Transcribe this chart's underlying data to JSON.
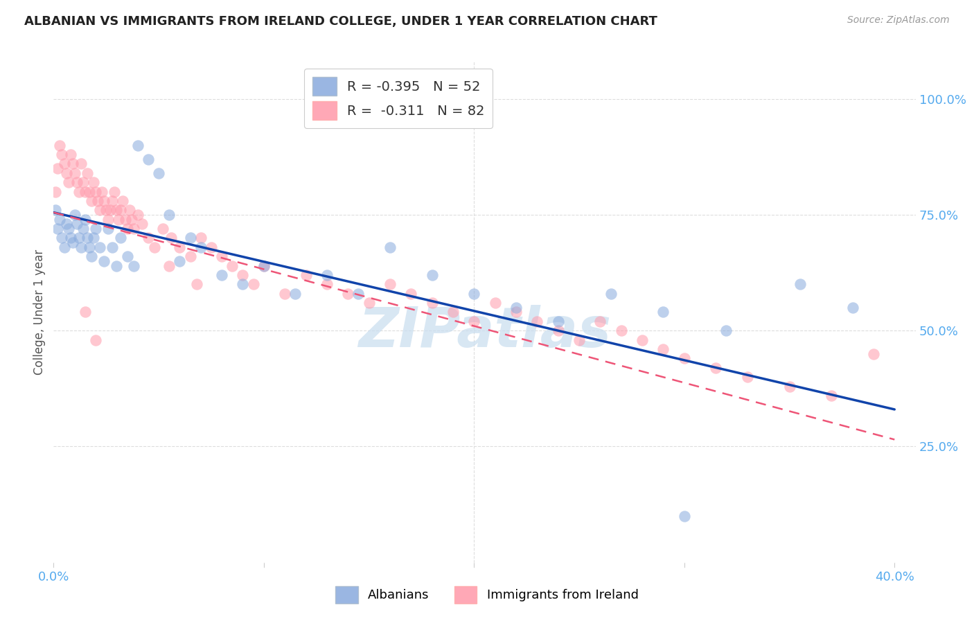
{
  "title": "ALBANIAN VS IMMIGRANTS FROM IRELAND COLLEGE, UNDER 1 YEAR CORRELATION CHART",
  "source": "Source: ZipAtlas.com",
  "ylabel": "College, Under 1 year",
  "xlim": [
    0.0,
    0.41
  ],
  "ylim": [
    0.0,
    1.08
  ],
  "blue_scatter_color": "#88AADD",
  "pink_scatter_color": "#FF99AA",
  "blue_line_color": "#1144AA",
  "pink_line_color": "#EE5577",
  "label_blue": "Albanians",
  "label_pink": "Immigrants from Ireland",
  "watermark": "ZIPatlas",
  "grid_color": "#DDDDDD",
  "title_color": "#222222",
  "axis_tick_color": "#55AAEE",
  "blue_line_x0": 0.0,
  "blue_line_y0": 0.755,
  "blue_line_x1": 0.4,
  "blue_line_y1": 0.33,
  "pink_line_x0": 0.0,
  "pink_line_y0": 0.755,
  "pink_line_x1": 0.4,
  "pink_line_y1": 0.265,
  "blue_x": [
    0.001,
    0.002,
    0.003,
    0.004,
    0.005,
    0.006,
    0.007,
    0.008,
    0.009,
    0.01,
    0.011,
    0.012,
    0.013,
    0.014,
    0.015,
    0.016,
    0.017,
    0.018,
    0.019,
    0.02,
    0.022,
    0.024,
    0.026,
    0.028,
    0.03,
    0.032,
    0.035,
    0.038,
    0.04,
    0.045,
    0.05,
    0.055,
    0.06,
    0.065,
    0.07,
    0.08,
    0.09,
    0.1,
    0.115,
    0.13,
    0.145,
    0.16,
    0.18,
    0.2,
    0.22,
    0.24,
    0.265,
    0.29,
    0.32,
    0.355,
    0.38,
    0.3
  ],
  "blue_y": [
    0.76,
    0.72,
    0.74,
    0.7,
    0.68,
    0.73,
    0.72,
    0.7,
    0.69,
    0.75,
    0.73,
    0.7,
    0.68,
    0.72,
    0.74,
    0.7,
    0.68,
    0.66,
    0.7,
    0.72,
    0.68,
    0.65,
    0.72,
    0.68,
    0.64,
    0.7,
    0.66,
    0.64,
    0.9,
    0.87,
    0.84,
    0.75,
    0.65,
    0.7,
    0.68,
    0.62,
    0.6,
    0.64,
    0.58,
    0.62,
    0.58,
    0.68,
    0.62,
    0.58,
    0.55,
    0.52,
    0.58,
    0.54,
    0.5,
    0.6,
    0.55,
    0.1
  ],
  "pink_x": [
    0.001,
    0.002,
    0.003,
    0.004,
    0.005,
    0.006,
    0.007,
    0.008,
    0.009,
    0.01,
    0.011,
    0.012,
    0.013,
    0.014,
    0.015,
    0.016,
    0.017,
    0.018,
    0.019,
    0.02,
    0.021,
    0.022,
    0.023,
    0.024,
    0.025,
    0.026,
    0.027,
    0.028,
    0.029,
    0.03,
    0.031,
    0.032,
    0.033,
    0.034,
    0.035,
    0.036,
    0.037,
    0.038,
    0.04,
    0.042,
    0.045,
    0.048,
    0.052,
    0.056,
    0.06,
    0.065,
    0.07,
    0.075,
    0.08,
    0.085,
    0.09,
    0.095,
    0.1,
    0.11,
    0.12,
    0.13,
    0.14,
    0.15,
    0.16,
    0.17,
    0.18,
    0.19,
    0.2,
    0.21,
    0.22,
    0.23,
    0.24,
    0.25,
    0.26,
    0.27,
    0.28,
    0.29,
    0.3,
    0.315,
    0.33,
    0.35,
    0.37,
    0.39,
    0.055,
    0.068,
    0.015,
    0.02
  ],
  "pink_y": [
    0.8,
    0.85,
    0.9,
    0.88,
    0.86,
    0.84,
    0.82,
    0.88,
    0.86,
    0.84,
    0.82,
    0.8,
    0.86,
    0.82,
    0.8,
    0.84,
    0.8,
    0.78,
    0.82,
    0.8,
    0.78,
    0.76,
    0.8,
    0.78,
    0.76,
    0.74,
    0.76,
    0.78,
    0.8,
    0.76,
    0.74,
    0.76,
    0.78,
    0.74,
    0.72,
    0.76,
    0.74,
    0.72,
    0.75,
    0.73,
    0.7,
    0.68,
    0.72,
    0.7,
    0.68,
    0.66,
    0.7,
    0.68,
    0.66,
    0.64,
    0.62,
    0.6,
    0.64,
    0.58,
    0.62,
    0.6,
    0.58,
    0.56,
    0.6,
    0.58,
    0.56,
    0.54,
    0.52,
    0.56,
    0.54,
    0.52,
    0.5,
    0.48,
    0.52,
    0.5,
    0.48,
    0.46,
    0.44,
    0.42,
    0.4,
    0.38,
    0.36,
    0.45,
    0.64,
    0.6,
    0.54,
    0.48
  ]
}
